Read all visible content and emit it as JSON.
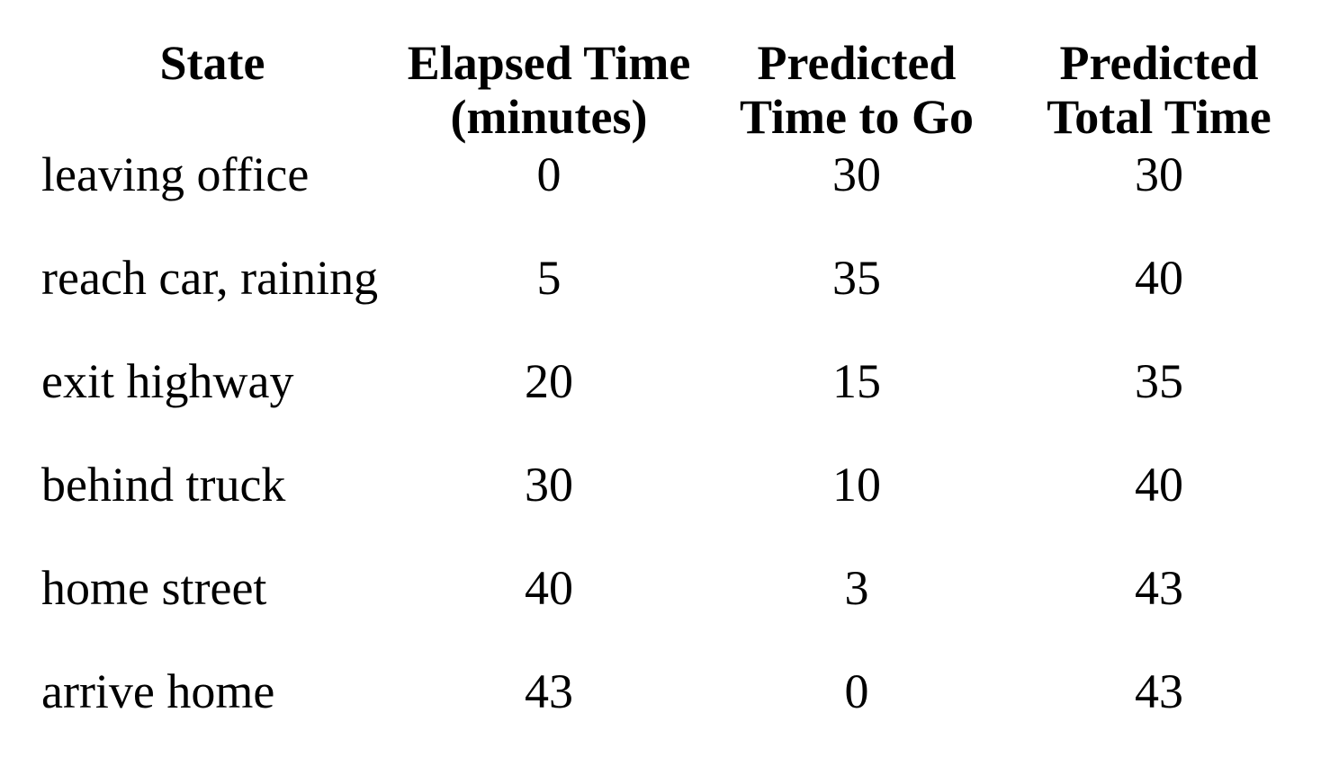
{
  "table": {
    "headers": [
      {
        "lines": [
          "State"
        ]
      },
      {
        "lines": [
          "Elapsed Time",
          "(minutes)"
        ]
      },
      {
        "lines": [
          "Predicted",
          "Time to Go"
        ]
      },
      {
        "lines": [
          "Predicted",
          "Total Time"
        ]
      }
    ],
    "rows": [
      {
        "state": "leaving office",
        "elapsed": "0",
        "to_go": "30",
        "total": "30"
      },
      {
        "state": "reach car, raining",
        "elapsed": "5",
        "to_go": "35",
        "total": "40"
      },
      {
        "state": "exit highway",
        "elapsed": "20",
        "to_go": "15",
        "total": "35"
      },
      {
        "state": "behind truck",
        "elapsed": "30",
        "to_go": "10",
        "total": "40"
      },
      {
        "state": "home street",
        "elapsed": "40",
        "to_go": "3",
        "total": "43"
      },
      {
        "state": "arrive home",
        "elapsed": "43",
        "to_go": "0",
        "total": "43"
      }
    ]
  }
}
